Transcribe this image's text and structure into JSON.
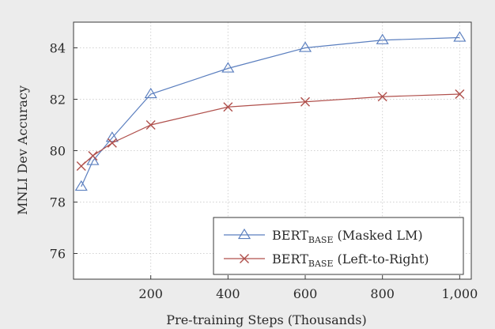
{
  "chart_data": {
    "type": "line",
    "xlabel": "Pre-training Steps (Thousands)",
    "ylabel": "MNLI Dev Accuracy",
    "xlim": [
      0,
      1000
    ],
    "ylim": [
      75,
      85
    ],
    "xticks": [
      200,
      400,
      600,
      800,
      1000
    ],
    "xtick_labels": [
      "200",
      "400",
      "600",
      "800",
      "1,000"
    ],
    "yticks": [
      76,
      78,
      80,
      82,
      84
    ],
    "ytick_labels": [
      "76",
      "78",
      "80",
      "82",
      "84"
    ],
    "grid": true,
    "legend_position": "bottom-right",
    "series": [
      {
        "name": "BERT",
        "name_sub": "BASE",
        "name_suffix": " (Masked LM)",
        "color": "#5b7fbf",
        "marker": "triangle",
        "x": [
          20,
          50,
          100,
          200,
          400,
          600,
          800,
          1000
        ],
        "y": [
          78.6,
          79.6,
          80.5,
          82.2,
          83.2,
          84.0,
          84.3,
          84.4
        ]
      },
      {
        "name": "BERT",
        "name_sub": "BASE",
        "name_suffix": " (Left-to-Right)",
        "color": "#b0504c",
        "marker": "cross",
        "x": [
          20,
          50,
          100,
          200,
          400,
          600,
          800,
          1000
        ],
        "y": [
          79.4,
          79.8,
          80.3,
          81.0,
          81.7,
          81.9,
          82.1,
          82.2
        ]
      }
    ]
  }
}
